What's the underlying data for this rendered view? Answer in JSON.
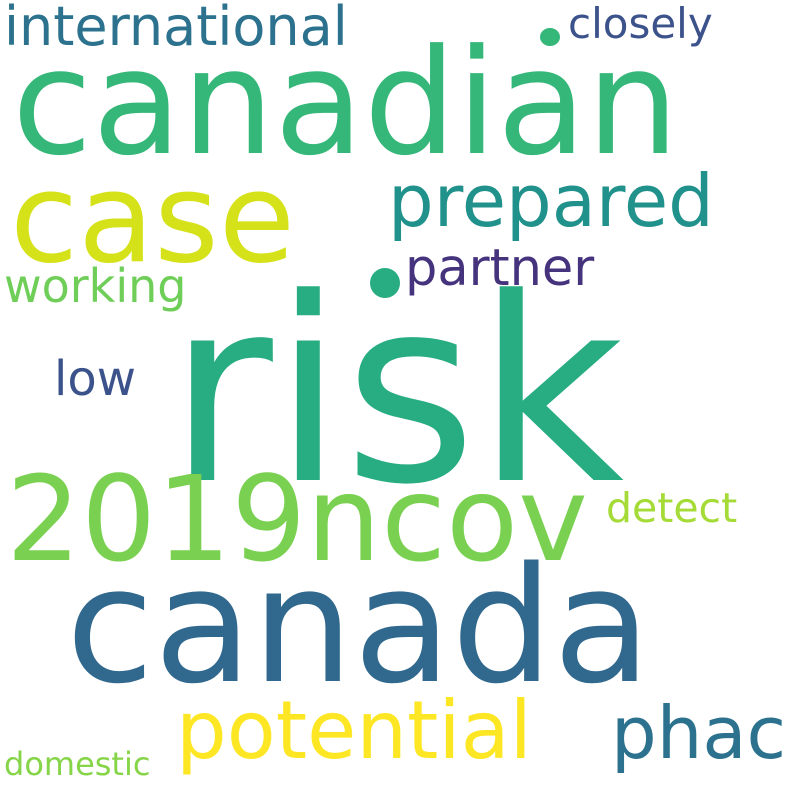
{
  "words": [
    {
      "text": "risk",
      "color": "#27ad81"
    },
    {
      "text": "canadian",
      "color": "#35b779"
    },
    {
      "text": "canada",
      "color": "#31688e"
    },
    {
      "text": "2019ncov",
      "color": "#7ad151"
    },
    {
      "text": "case",
      "color": "#d5e21a"
    },
    {
      "text": "potential",
      "color": "#fde725"
    },
    {
      "text": "prepared",
      "color": "#21918c"
    },
    {
      "text": "international",
      "color": "#2c728e"
    },
    {
      "text": "phac",
      "color": "#2c728e"
    },
    {
      "text": "partner",
      "color": "#46337e"
    },
    {
      "text": "closely",
      "color": "#3b528b"
    },
    {
      "text": "working",
      "color": "#6ece58"
    },
    {
      "text": "low",
      "color": "#3b528b"
    },
    {
      "text": "detect",
      "color": "#a5db36"
    },
    {
      "text": "domestic",
      "color": "#86d549"
    }
  ]
}
